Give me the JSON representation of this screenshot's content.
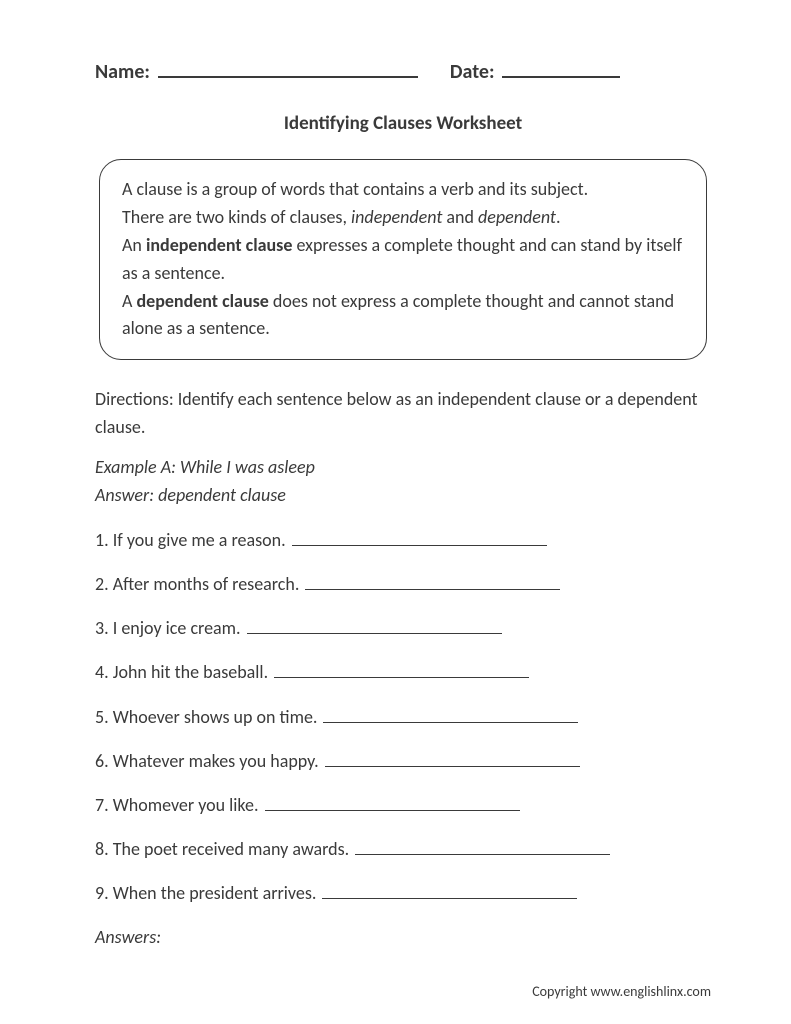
{
  "header": {
    "name_label": "Name:",
    "date_label": "Date:"
  },
  "title": "Identifying Clauses Worksheet",
  "infobox": {
    "line1_a": "A clause is a group of words that contains a verb and its subject.",
    "line2_a": "There are two kinds of clauses, ",
    "line2_b": "independent",
    "line2_c": " and ",
    "line2_d": "dependent",
    "line2_e": ".",
    "line3_a": "An ",
    "line3_b": "independent clause",
    "line3_c": " expresses a complete thought and can stand by itself as a sentence.",
    "line4_a": "A ",
    "line4_b": "dependent clause",
    "line4_c": " does not express a complete thought and cannot stand alone as a sentence."
  },
  "directions": "Directions: Identify each sentence below as an independent clause or a dependent clause.",
  "example": {
    "prompt": "Example A: While I was asleep",
    "answer": "Answer: dependent clause"
  },
  "questions": [
    {
      "num": "1.",
      "text": "If you give me a reason.",
      "line_width": 255
    },
    {
      "num": "2.",
      "text": "After months of research.",
      "line_width": 255
    },
    {
      "num": "3.",
      "text": "I enjoy ice cream.",
      "line_width": 255
    },
    {
      "num": "4.",
      "text": "John hit the baseball.",
      "line_width": 255
    },
    {
      "num": "5.",
      "text": "Whoever shows up on time.",
      "line_width": 255
    },
    {
      "num": "6.",
      "text": "Whatever makes you happy.",
      "line_width": 255
    },
    {
      "num": "7.",
      "text": "Whomever you like.",
      "line_width": 255
    },
    {
      "num": "8.",
      "text": "The poet received many awards.",
      "line_width": 255
    },
    {
      "num": "9.",
      "text": "When the president arrives.",
      "line_width": 255
    }
  ],
  "answers_label": "Answers:",
  "copyright": "Copyright www.englishlinx.com"
}
